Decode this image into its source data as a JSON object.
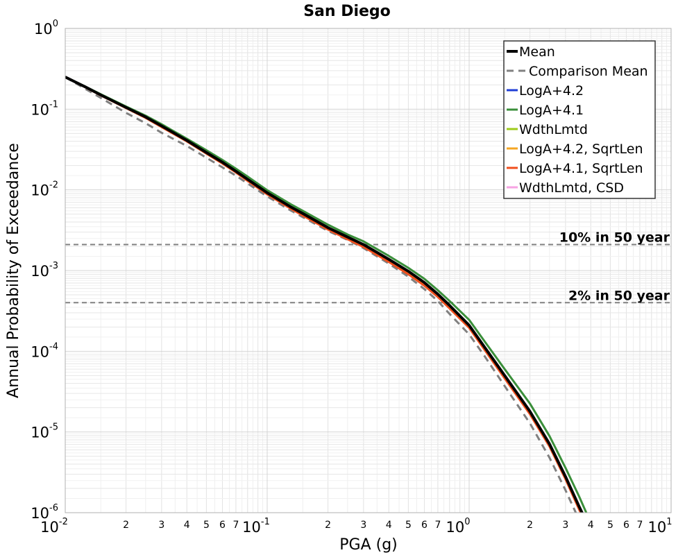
{
  "chart_data": {
    "type": "line",
    "title": "San Diego",
    "xlabel": "PGA (g)",
    "ylabel": "Annual Probability of Exceedance",
    "xscale": "log",
    "yscale": "log",
    "xlim": [
      0.01,
      10
    ],
    "ylim": [
      1e-06,
      1
    ],
    "grid": true,
    "legend_position": "top-right",
    "x_major_ticks": [
      {
        "value": 0.01,
        "base": "10",
        "exp": "-2"
      },
      {
        "value": 0.1,
        "base": "10",
        "exp": "-1"
      },
      {
        "value": 1,
        "base": "10",
        "exp": "0"
      },
      {
        "value": 10,
        "base": "10",
        "exp": "1"
      }
    ],
    "x_minor_tick_labels": [
      "2",
      "3",
      "4",
      "5",
      "6",
      "7"
    ],
    "y_major_ticks": [
      {
        "value": 1,
        "base": "10",
        "exp": "0"
      },
      {
        "value": 0.1,
        "base": "10",
        "exp": "-1"
      },
      {
        "value": 0.01,
        "base": "10",
        "exp": "-2"
      },
      {
        "value": 0.001,
        "base": "10",
        "exp": "-3"
      },
      {
        "value": 0.0001,
        "base": "10",
        "exp": "-4"
      },
      {
        "value": 1e-05,
        "base": "10",
        "exp": "-5"
      },
      {
        "value": 1e-06,
        "base": "10",
        "exp": "-6"
      }
    ],
    "reference_lines": [
      {
        "label": "10% in 50 year",
        "y": 0.0021,
        "color": "#808080"
      },
      {
        "label": "2% in 50 year",
        "y": 0.0004,
        "color": "#808080"
      }
    ],
    "series": [
      {
        "name": "Mean",
        "color": "#000000",
        "dash": "solid",
        "width": 4,
        "x": [
          0.01,
          0.0125,
          0.015,
          0.02,
          0.025,
          0.03,
          0.04,
          0.05,
          0.06,
          0.07,
          0.08,
          0.1,
          0.13,
          0.15,
          0.2,
          0.25,
          0.3,
          0.4,
          0.5,
          0.6,
          0.7,
          0.8,
          1.0,
          1.2,
          1.5,
          2.0,
          2.5,
          3.0,
          3.5,
          3.8
        ],
        "y": [
          0.25,
          0.19,
          0.15,
          0.105,
          0.08,
          0.062,
          0.041,
          0.029,
          0.022,
          0.017,
          0.0135,
          0.0092,
          0.0062,
          0.0051,
          0.0034,
          0.0026,
          0.0021,
          0.00138,
          0.00098,
          0.00071,
          0.00051,
          0.00037,
          0.00021,
          0.00011,
          5e-05,
          1.8e-05,
          7.1e-06,
          2.8e-06,
          1.2e-06,
          7.8e-07
        ]
      },
      {
        "name": "Comparison Mean",
        "color": "#808080",
        "dash": "dashed",
        "width": 3,
        "x": [
          0.01,
          0.0125,
          0.015,
          0.02,
          0.025,
          0.03,
          0.04,
          0.05,
          0.06,
          0.07,
          0.08,
          0.1,
          0.13,
          0.15,
          0.2,
          0.25,
          0.3,
          0.4,
          0.5,
          0.6,
          0.7,
          0.8,
          1.0,
          1.2,
          1.5,
          2.0,
          2.5,
          3.0,
          3.5,
          3.7
        ],
        "y": [
          0.25,
          0.18,
          0.138,
          0.09,
          0.067,
          0.051,
          0.035,
          0.025,
          0.019,
          0.015,
          0.012,
          0.0083,
          0.0056,
          0.0046,
          0.0031,
          0.0024,
          0.0019,
          0.00122,
          0.00084,
          0.00059,
          0.00042,
          0.00029,
          0.000162,
          8.5e-05,
          3.7e-05,
          1.28e-05,
          4.8e-06,
          1.9e-06,
          8.2e-07,
          6e-07
        ]
      },
      {
        "name": "LogA+4.2",
        "color": "#1f3ed6",
        "dash": "solid",
        "width": 3,
        "x": [
          0.01,
          0.0125,
          0.015,
          0.02,
          0.025,
          0.03,
          0.04,
          0.05,
          0.06,
          0.07,
          0.08,
          0.1,
          0.13,
          0.15,
          0.2,
          0.25,
          0.3,
          0.4,
          0.5,
          0.6,
          0.7,
          0.8,
          1.0,
          1.2,
          1.5,
          2.0,
          2.5,
          3.0,
          3.5,
          3.8
        ],
        "y": [
          0.25,
          0.19,
          0.15,
          0.105,
          0.08,
          0.062,
          0.041,
          0.029,
          0.022,
          0.017,
          0.0135,
          0.0092,
          0.0062,
          0.0051,
          0.0034,
          0.0026,
          0.0021,
          0.00138,
          0.00098,
          0.00071,
          0.00051,
          0.00037,
          0.00021,
          0.00011,
          5e-05,
          1.8e-05,
          7.1e-06,
          2.8e-06,
          1.2e-06,
          7.8e-07
        ]
      },
      {
        "name": "LogA+4.1",
        "color": "#3a8f3a",
        "dash": "solid",
        "width": 3,
        "x": [
          0.01,
          0.0125,
          0.015,
          0.02,
          0.025,
          0.03,
          0.04,
          0.05,
          0.06,
          0.07,
          0.08,
          0.1,
          0.13,
          0.15,
          0.2,
          0.25,
          0.3,
          0.4,
          0.5,
          0.6,
          0.7,
          0.8,
          1.0,
          1.2,
          1.5,
          2.0,
          2.5,
          3.0,
          3.5,
          4.0
        ],
        "y": [
          0.25,
          0.192,
          0.153,
          0.108,
          0.083,
          0.065,
          0.043,
          0.031,
          0.0235,
          0.0183,
          0.0146,
          0.0099,
          0.0067,
          0.0055,
          0.0037,
          0.0028,
          0.0023,
          0.00152,
          0.00108,
          0.00079,
          0.00057,
          0.00042,
          0.000245,
          0.00013,
          6e-05,
          2.25e-05,
          8.9e-06,
          3.6e-06,
          1.6e-06,
          7.5e-07
        ]
      },
      {
        "name": "WdthLmtd",
        "color": "#9ecb1a",
        "dash": "solid",
        "width": 3,
        "x": [
          0.01,
          0.0125,
          0.015,
          0.02,
          0.025,
          0.03,
          0.04,
          0.05,
          0.06,
          0.07,
          0.08,
          0.1,
          0.13,
          0.15,
          0.2,
          0.25,
          0.3,
          0.4,
          0.5,
          0.6,
          0.7,
          0.8,
          1.0,
          1.2,
          1.5,
          2.0,
          2.5,
          3.0,
          3.5,
          3.8
        ],
        "y": [
          0.25,
          0.19,
          0.15,
          0.105,
          0.08,
          0.062,
          0.041,
          0.029,
          0.022,
          0.017,
          0.0135,
          0.0092,
          0.0062,
          0.0051,
          0.0034,
          0.0026,
          0.0021,
          0.00138,
          0.00098,
          0.00071,
          0.00051,
          0.00037,
          0.00021,
          0.00011,
          5e-05,
          1.8e-05,
          7.1e-06,
          2.8e-06,
          1.2e-06,
          7.8e-07
        ]
      },
      {
        "name": "LogA+4.2, SqrtLen",
        "color": "#f5a623",
        "dash": "solid",
        "width": 3,
        "x": [
          0.01,
          0.0125,
          0.015,
          0.02,
          0.025,
          0.03,
          0.04,
          0.05,
          0.06,
          0.07,
          0.08,
          0.1,
          0.13,
          0.15,
          0.2,
          0.25,
          0.3,
          0.4,
          0.5,
          0.6,
          0.7,
          0.8,
          1.0,
          1.2,
          1.5,
          2.0,
          2.5,
          3.0,
          3.5,
          3.8
        ],
        "y": [
          0.25,
          0.189,
          0.149,
          0.104,
          0.079,
          0.061,
          0.0403,
          0.0285,
          0.0216,
          0.0167,
          0.0132,
          0.009,
          0.006,
          0.0049,
          0.0033,
          0.0025,
          0.00202,
          0.00132,
          0.00093,
          0.00067,
          0.00048,
          0.00035,
          0.0002,
          0.000105,
          4.8e-05,
          1.72e-05,
          6.8e-06,
          2.7e-06,
          1.15e-06,
          7.5e-07
        ]
      },
      {
        "name": "LogA+4.1, SqrtLen",
        "color": "#f04e1c",
        "dash": "solid",
        "width": 3,
        "x": [
          0.01,
          0.0125,
          0.015,
          0.02,
          0.025,
          0.03,
          0.04,
          0.05,
          0.06,
          0.07,
          0.08,
          0.1,
          0.13,
          0.15,
          0.2,
          0.25,
          0.3,
          0.4,
          0.5,
          0.6,
          0.7,
          0.8,
          1.0,
          1.2,
          1.5,
          2.0,
          2.5,
          3.0,
          3.5,
          3.8
        ],
        "y": [
          0.25,
          0.188,
          0.148,
          0.103,
          0.078,
          0.06,
          0.0398,
          0.0281,
          0.0212,
          0.0164,
          0.0129,
          0.0088,
          0.0059,
          0.0048,
          0.00322,
          0.00244,
          0.00196,
          0.00128,
          0.0009,
          0.00065,
          0.00047,
          0.00034,
          0.000195,
          0.000102,
          4.6e-05,
          1.66e-05,
          6.6e-06,
          2.6e-06,
          1.1e-06,
          7.2e-07
        ]
      },
      {
        "name": "WdthLmtd, CSD",
        "color": "#f7a3e3",
        "dash": "solid",
        "width": 3,
        "x": [
          0.01,
          0.0125,
          0.015,
          0.02,
          0.025,
          0.03,
          0.04,
          0.05,
          0.06,
          0.07,
          0.08,
          0.1,
          0.13,
          0.15,
          0.2,
          0.25,
          0.3,
          0.4,
          0.5,
          0.6,
          0.7,
          0.8,
          1.0,
          1.2,
          1.5,
          2.0,
          2.5,
          3.0,
          3.5,
          3.8
        ],
        "y": [
          0.25,
          0.19,
          0.15,
          0.105,
          0.08,
          0.062,
          0.041,
          0.029,
          0.022,
          0.017,
          0.0135,
          0.0092,
          0.0062,
          0.0051,
          0.0034,
          0.0026,
          0.0021,
          0.00138,
          0.00098,
          0.00071,
          0.00051,
          0.00037,
          0.00021,
          0.00011,
          5e-05,
          1.8e-05,
          7.1e-06,
          2.8e-06,
          1.2e-06,
          7.8e-07
        ]
      }
    ],
    "draw_order": [
      "Comparison Mean",
      "LogA+4.1",
      "LogA+4.2",
      "WdthLmtd",
      "WdthLmtd, CSD",
      "LogA+4.2, SqrtLen",
      "LogA+4.1, SqrtLen",
      "Mean"
    ]
  }
}
